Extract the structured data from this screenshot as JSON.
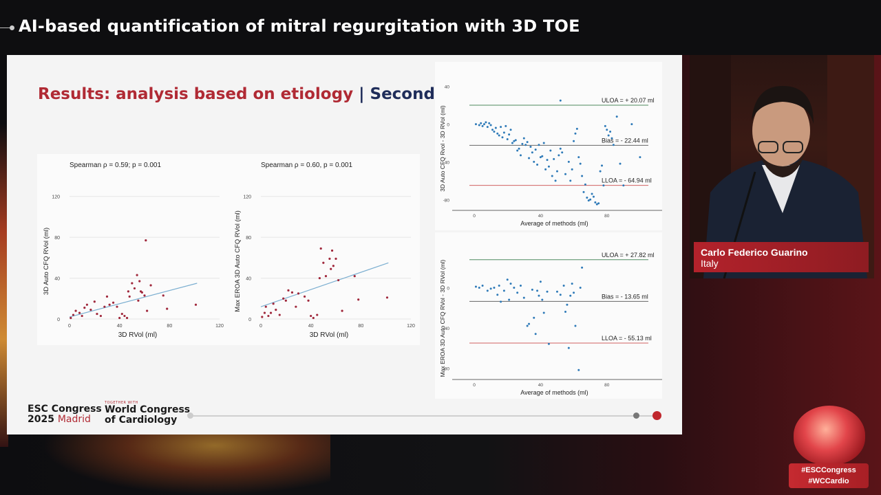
{
  "header": {
    "title": "AI-based quantification of mitral regurgitation with 3D TOE"
  },
  "slide": {
    "heading_red": "Results: analysis based on etiology",
    "heading_sep": "|",
    "heading_navy": "Secondary",
    "footer": {
      "esc_line1": "ESC Congress",
      "esc_year": "2025",
      "esc_city": "Madrid",
      "together_with": "TOGETHER WITH",
      "wcc_line1": "World Congress",
      "wcc_line2": "of Cardiology"
    }
  },
  "speaker": {
    "name": "Carlo Federico Guarino",
    "country": "Italy"
  },
  "hashtags": [
    "#ESCCongress",
    "#WCCardio"
  ],
  "colors": {
    "accent_red": "#b02a34",
    "navy": "#1f2d5a",
    "scatter_point": "#a0283c",
    "fit_line": "#7aaed0",
    "ba_point": "#2e7ab8",
    "uloa_line": "#4c8a5e",
    "lloa_line": "#d06060"
  },
  "chart_data": [
    {
      "type": "scatter",
      "annotation": "Spearman ρ = 0.59; p = 0.001",
      "xlabel": "3D RVol (ml)",
      "ylabel": "3D Auto CFQ RVol (ml)",
      "xlim": [
        0,
        120
      ],
      "ylim": [
        0,
        140
      ],
      "xticks": [
        0,
        40,
        80,
        120
      ],
      "yticks": [
        0,
        40,
        80,
        120
      ],
      "points": [
        [
          1,
          1
        ],
        [
          3,
          4
        ],
        [
          5,
          8
        ],
        [
          8,
          6
        ],
        [
          10,
          3
        ],
        [
          12,
          11
        ],
        [
          14,
          14
        ],
        [
          17,
          9
        ],
        [
          20,
          17
        ],
        [
          22,
          5
        ],
        [
          25,
          3
        ],
        [
          28,
          12
        ],
        [
          30,
          22
        ],
        [
          32,
          14
        ],
        [
          35,
          16
        ],
        [
          38,
          12
        ],
        [
          40,
          1
        ],
        [
          42,
          5
        ],
        [
          44,
          3
        ],
        [
          46,
          1
        ],
        [
          47,
          27
        ],
        [
          48,
          22
        ],
        [
          50,
          35
        ],
        [
          52,
          30
        ],
        [
          54,
          43
        ],
        [
          55,
          18
        ],
        [
          56,
          37
        ],
        [
          57,
          27
        ],
        [
          58,
          26
        ],
        [
          60,
          23
        ],
        [
          61,
          77
        ],
        [
          62,
          8
        ],
        [
          65,
          33
        ],
        [
          75,
          23
        ],
        [
          78,
          10
        ],
        [
          101,
          14
        ]
      ],
      "fit": [
        [
          0,
          2
        ],
        [
          102,
          35
        ]
      ]
    },
    {
      "type": "scatter",
      "annotation": "Spearman ρ = 0.60, p = 0.001",
      "xlabel": "3D RVol (ml)",
      "ylabel": "Max EROA 3D Auto CFQ RVol (ml)",
      "xlim": [
        0,
        120
      ],
      "ylim": [
        0,
        140
      ],
      "xticks": [
        0,
        40,
        80,
        120
      ],
      "yticks": [
        0,
        40,
        80,
        120
      ],
      "points": [
        [
          1,
          2
        ],
        [
          3,
          6
        ],
        [
          4,
          12
        ],
        [
          6,
          3
        ],
        [
          8,
          6
        ],
        [
          10,
          15
        ],
        [
          12,
          9
        ],
        [
          15,
          4
        ],
        [
          18,
          20
        ],
        [
          20,
          18
        ],
        [
          22,
          28
        ],
        [
          25,
          26
        ],
        [
          28,
          12
        ],
        [
          30,
          25
        ],
        [
          35,
          22
        ],
        [
          38,
          18
        ],
        [
          40,
          3
        ],
        [
          42,
          1
        ],
        [
          45,
          4
        ],
        [
          47,
          40
        ],
        [
          48,
          69
        ],
        [
          50,
          55
        ],
        [
          52,
          42
        ],
        [
          55,
          59
        ],
        [
          56,
          49
        ],
        [
          57,
          67
        ],
        [
          58,
          52
        ],
        [
          60,
          59
        ],
        [
          62,
          38
        ],
        [
          65,
          8
        ],
        [
          75,
          42
        ],
        [
          78,
          19
        ],
        [
          101,
          21
        ]
      ],
      "fit": [
        [
          0,
          12
        ],
        [
          102,
          55
        ]
      ]
    },
    {
      "type": "scatter",
      "subtype": "bland-altman",
      "xlabel": "Average of methods (ml)",
      "ylabel": "3D Auto CFQ Rvol - 3D RVol (ml)",
      "xlim": [
        -5,
        110
      ],
      "ylim": [
        -90,
        50
      ],
      "xticks": [
        0,
        40,
        80
      ],
      "yticks": [
        40,
        0,
        -40,
        -80
      ],
      "lines": [
        {
          "label": "ULOA = + 20.07 ml",
          "y": 20.07
        },
        {
          "label": "Bias = - 22.44 ml",
          "y": -22.44
        },
        {
          "label": "LLOA = - 64.94 ml",
          "y": -64.94
        }
      ],
      "points": [
        [
          1,
          0
        ],
        [
          3,
          -1
        ],
        [
          4,
          1
        ],
        [
          5,
          -2
        ],
        [
          6,
          0
        ],
        [
          7,
          2
        ],
        [
          8,
          -3
        ],
        [
          9,
          1
        ],
        [
          10,
          -1
        ],
        [
          11,
          -6
        ],
        [
          12,
          -8
        ],
        [
          13,
          -4
        ],
        [
          14,
          -10
        ],
        [
          15,
          -12
        ],
        [
          16,
          -3
        ],
        [
          17,
          -14
        ],
        [
          18,
          -9
        ],
        [
          19,
          -2
        ],
        [
          20,
          -16
        ],
        [
          21,
          -11
        ],
        [
          22,
          -6
        ],
        [
          23,
          -20
        ],
        [
          24,
          -18
        ],
        [
          25,
          -17
        ],
        [
          26,
          -28
        ],
        [
          27,
          -26
        ],
        [
          28,
          -33
        ],
        [
          29,
          -21
        ],
        [
          30,
          -15
        ],
        [
          31,
          -22
        ],
        [
          32,
          -19
        ],
        [
          33,
          -36
        ],
        [
          34,
          -24
        ],
        [
          35,
          -30
        ],
        [
          36,
          -40
        ],
        [
          37,
          -27
        ],
        [
          38,
          -43
        ],
        [
          39,
          -22
        ],
        [
          40,
          -35
        ],
        [
          41,
          -34
        ],
        [
          42,
          -20
        ],
        [
          43,
          -48
        ],
        [
          44,
          -38
        ],
        [
          45,
          -45
        ],
        [
          46,
          -28
        ],
        [
          47,
          -55
        ],
        [
          48,
          -37
        ],
        [
          49,
          -60
        ],
        [
          50,
          -50
        ],
        [
          51,
          -33
        ],
        [
          52,
          -26
        ],
        [
          53,
          -30
        ],
        [
          55,
          -53
        ],
        [
          57,
          -40
        ],
        [
          58,
          -60
        ],
        [
          59,
          -48
        ],
        [
          60,
          -18
        ],
        [
          61,
          -10
        ],
        [
          62,
          -5
        ],
        [
          63,
          -35
        ],
        [
          64,
          -42
        ],
        [
          65,
          -55
        ],
        [
          66,
          -72
        ],
        [
          67,
          -64
        ],
        [
          68,
          -78
        ],
        [
          69,
          -81
        ],
        [
          70,
          -80
        ],
        [
          71,
          -74
        ],
        [
          72,
          -77
        ],
        [
          73,
          -83
        ],
        [
          74,
          -85
        ],
        [
          75,
          -84
        ],
        [
          76,
          -50
        ],
        [
          77,
          -44
        ],
        [
          78,
          -65
        ],
        [
          79,
          -2
        ],
        [
          80,
          -6
        ],
        [
          81,
          -12
        ],
        [
          82,
          -8
        ],
        [
          83,
          -15
        ],
        [
          84,
          -22
        ],
        [
          86,
          8
        ],
        [
          88,
          -42
        ],
        [
          90,
          -65
        ],
        [
          95,
          0
        ],
        [
          100,
          -35
        ],
        [
          52,
          25
        ]
      ]
    },
    {
      "type": "scatter",
      "subtype": "bland-altman",
      "xlabel": "Average of methods (ml)",
      "ylabel": "Max EROA 3D Auto CFQ RVol - 3D RVol (ml)",
      "xlim": [
        -5,
        110
      ],
      "ylim": [
        -90,
        40
      ],
      "xticks": [
        0,
        40,
        80
      ],
      "yticks": [
        0,
        -40,
        -80
      ],
      "lines": [
        {
          "label": "ULOA = + 27.82 ml",
          "y": 27.82
        },
        {
          "label": "Bias = - 13.65 ml",
          "y": -13.65
        },
        {
          "label": "LLOA = - 55.13 ml",
          "y": -55.13
        }
      ],
      "points": [
        [
          1,
          1
        ],
        [
          3,
          0
        ],
        [
          5,
          2
        ],
        [
          8,
          -3
        ],
        [
          10,
          -1
        ],
        [
          12,
          0
        ],
        [
          14,
          -7
        ],
        [
          15,
          2
        ],
        [
          16,
          -14
        ],
        [
          18,
          -3
        ],
        [
          20,
          8
        ],
        [
          21,
          -12
        ],
        [
          22,
          4
        ],
        [
          24,
          0
        ],
        [
          26,
          -5
        ],
        [
          28,
          2
        ],
        [
          30,
          -10
        ],
        [
          32,
          -38
        ],
        [
          33,
          -36
        ],
        [
          35,
          -2
        ],
        [
          36,
          -30
        ],
        [
          37,
          -46
        ],
        [
          38,
          -3
        ],
        [
          39,
          -8
        ],
        [
          40,
          6
        ],
        [
          41,
          -12
        ],
        [
          42,
          -25
        ],
        [
          44,
          -4
        ],
        [
          45,
          -56
        ],
        [
          50,
          -4
        ],
        [
          52,
          -7
        ],
        [
          54,
          2
        ],
        [
          55,
          -24
        ],
        [
          56,
          -17
        ],
        [
          57,
          -60
        ],
        [
          58,
          -8
        ],
        [
          59,
          4
        ],
        [
          60,
          -5
        ],
        [
          61,
          -38
        ],
        [
          63,
          -82
        ],
        [
          64,
          0
        ],
        [
          65,
          20
        ]
      ]
    }
  ]
}
